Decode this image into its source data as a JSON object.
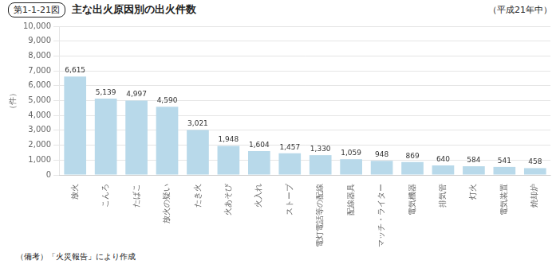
{
  "chart_data": {
    "type": "bar",
    "title": "主な出火原因別の出火件数",
    "subtitle": "（平成21年中）",
    "ylabel": "（件）",
    "annotations": [
      "第1-1-21図",
      "（備考）「火災報告」により作成"
    ],
    "categories": [
      "放火",
      "こんろ",
      "たばこ",
      "放火の疑い",
      "たき火",
      "火あそび",
      "火入れ",
      "ストーブ",
      "電灯電話等の配線",
      "配線器具",
      "マッチ・ライター",
      "電気機器",
      "排気管",
      "灯火",
      "電気装置",
      "焼却炉"
    ],
    "values": [
      6615,
      5139,
      4997,
      4590,
      3021,
      1948,
      1604,
      1457,
      1330,
      1059,
      948,
      869,
      640,
      584,
      541,
      458
    ],
    "value_labels": [
      "6,615",
      "5,139",
      "4,997",
      "4,590",
      "3,021",
      "1,948",
      "1,604",
      "1,457",
      "1,330",
      "1,059",
      "948",
      "869",
      "640",
      "584",
      "541",
      "458"
    ],
    "data_labels": true,
    "color": "#b8d9ea",
    "ylim": [
      0,
      10000
    ],
    "yticks": [
      0,
      {
        "value": 1000,
        "label": "1,000"
      },
      {
        "value": 2000,
        "label": "2,000"
      },
      {
        "value": 3000,
        "label": "3,000"
      },
      {
        "value": 4000,
        "label": "4,000"
      },
      {
        "value": 5000,
        "label": "5,000"
      },
      {
        "value": 6000,
        "label": "6,000"
      },
      {
        "value": 7000,
        "label": "7,000"
      },
      {
        "value": 8000,
        "label": "8,000"
      },
      {
        "value": 9000,
        "label": "9,000"
      },
      {
        "value": 10000,
        "label": "10,000"
      }
    ],
    "grid": true
  }
}
